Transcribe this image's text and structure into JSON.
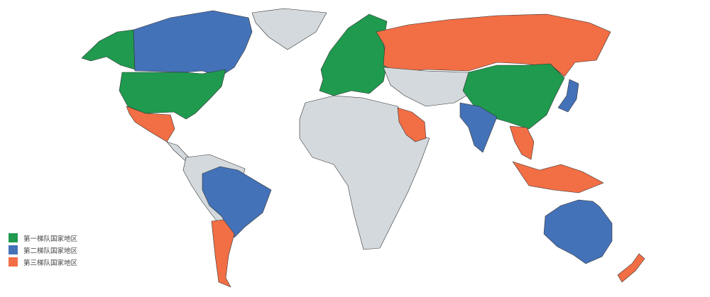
{
  "colors": {
    "tier1": "#1f9a4f",
    "tier2": "#4472b8",
    "tier3": "#f26e45",
    "other": "#d3d9dc"
  },
  "legend": [
    {
      "label": "第一梯队国家地区",
      "color": "#1f9a4f"
    },
    {
      "label": "第二梯队国家地区",
      "color": "#4472b8"
    },
    {
      "label": "第三梯队国家地区",
      "color": "#f26e45"
    }
  ],
  "regions": [
    {
      "name": "greenland",
      "tier": "other"
    },
    {
      "name": "alaska",
      "tier": "tier1"
    },
    {
      "name": "canada",
      "tier": "tier2"
    },
    {
      "name": "usa",
      "tier": "tier1"
    },
    {
      "name": "mexico",
      "tier": "tier3"
    },
    {
      "name": "central-america",
      "tier": "other"
    },
    {
      "name": "south-america",
      "tier": "other"
    },
    {
      "name": "brazil",
      "tier": "tier2"
    },
    {
      "name": "argentina",
      "tier": "tier3"
    },
    {
      "name": "europe",
      "tier": "tier1"
    },
    {
      "name": "russia",
      "tier": "tier3"
    },
    {
      "name": "central-asia",
      "tier": "other"
    },
    {
      "name": "china",
      "tier": "tier1"
    },
    {
      "name": "africa",
      "tier": "other"
    },
    {
      "name": "saudi-arabia",
      "tier": "tier3"
    },
    {
      "name": "india",
      "tier": "tier2"
    },
    {
      "name": "southeast-asia",
      "tier": "tier3"
    },
    {
      "name": "indonesia",
      "tier": "tier3"
    },
    {
      "name": "japan",
      "tier": "tier2"
    },
    {
      "name": "australia",
      "tier": "tier2"
    },
    {
      "name": "new-zealand",
      "tier": "tier3"
    }
  ]
}
